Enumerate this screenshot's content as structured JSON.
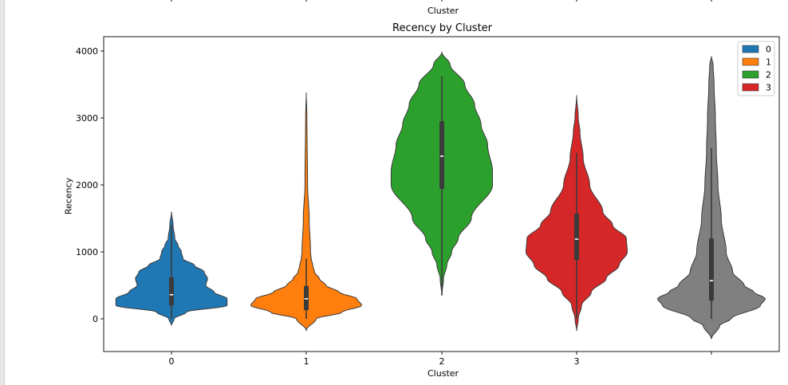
{
  "top_partial": {
    "xlabel": "Cluster",
    "ticks": [
      "0",
      "1",
      "2",
      "3",
      ""
    ]
  },
  "chart_data": {
    "type": "violin",
    "title": "Recency by Cluster",
    "xlabel": "Cluster",
    "ylabel": "Recency",
    "categories": [
      "0",
      "1",
      "2",
      "3",
      ""
    ],
    "ylim": [
      -500,
      4200
    ],
    "yticks": [
      0,
      1000,
      2000,
      3000,
      4000
    ],
    "legend": {
      "placement": "top-right",
      "entries": [
        "0",
        "1",
        "2",
        "3"
      ]
    },
    "colors": [
      "#1f77b4",
      "#ff7f0e",
      "#2ca02c",
      "#d62728",
      "#808080"
    ],
    "series": [
      {
        "name": "0",
        "min": -100,
        "max": 1600,
        "q1": 200,
        "median": 360,
        "q3": 620,
        "whisker_low": 0,
        "whisker_high": 1400,
        "profile": [
          [
            -100,
            0
          ],
          [
            0,
            0.8
          ],
          [
            100,
            4.5
          ],
          [
            200,
            17
          ],
          [
            300,
            17
          ],
          [
            400,
            13
          ],
          [
            500,
            10.5
          ],
          [
            600,
            11
          ],
          [
            700,
            10
          ],
          [
            800,
            7
          ],
          [
            900,
            3.5
          ],
          [
            1000,
            3
          ],
          [
            1100,
            2
          ],
          [
            1200,
            1
          ],
          [
            1400,
            0.5
          ],
          [
            1600,
            0
          ]
        ]
      },
      {
        "name": "1",
        "min": -170,
        "max": 3380,
        "q1": 130,
        "median": 300,
        "q3": 490,
        "whisker_low": 0,
        "whisker_high": 900,
        "profile": [
          [
            -170,
            0
          ],
          [
            0,
            3
          ],
          [
            100,
            11
          ],
          [
            200,
            17
          ],
          [
            300,
            15.5
          ],
          [
            400,
            10
          ],
          [
            500,
            6
          ],
          [
            600,
            4
          ],
          [
            700,
            2.5
          ],
          [
            800,
            2
          ],
          [
            900,
            1.5
          ],
          [
            1000,
            1.3
          ],
          [
            1500,
            0.9
          ],
          [
            2000,
            0.4
          ],
          [
            3000,
            0.2
          ],
          [
            3380,
            0
          ]
        ]
      },
      {
        "name": "2",
        "min": 350,
        "max": 3980,
        "q1": 1940,
        "median": 2430,
        "q3": 2950,
        "whisker_low": 350,
        "whisker_high": 3620,
        "profile": [
          [
            350,
            0
          ],
          [
            600,
            0.5
          ],
          [
            800,
            1.5
          ],
          [
            1000,
            3
          ],
          [
            1200,
            5
          ],
          [
            1500,
            9
          ],
          [
            2000,
            15.5
          ],
          [
            2200,
            15.5
          ],
          [
            2600,
            14
          ],
          [
            2900,
            12
          ],
          [
            3200,
            10
          ],
          [
            3500,
            7
          ],
          [
            3800,
            2.5
          ],
          [
            3980,
            0
          ]
        ]
      },
      {
        "name": "3",
        "min": -180,
        "max": 3340,
        "q1": 880,
        "median": 1190,
        "q3": 1570,
        "whisker_low": 0,
        "whisker_high": 2480,
        "profile": [
          [
            -180,
            0
          ],
          [
            0,
            0.5
          ],
          [
            200,
            1.5
          ],
          [
            400,
            4.5
          ],
          [
            600,
            9
          ],
          [
            800,
            13
          ],
          [
            1000,
            15.5
          ],
          [
            1200,
            15.2
          ],
          [
            1400,
            11
          ],
          [
            1600,
            8
          ],
          [
            2000,
            4
          ],
          [
            2400,
            2
          ],
          [
            2800,
            1
          ],
          [
            3000,
            0.5
          ],
          [
            3340,
            0
          ]
        ]
      },
      {
        "name": "",
        "min": -300,
        "max": 3920,
        "q1": 270,
        "median": 570,
        "q3": 1200,
        "whisker_low": 0,
        "whisker_high": 2550,
        "profile": [
          [
            -300,
            0
          ],
          [
            -100,
            2.5
          ],
          [
            0,
            6
          ],
          [
            200,
            15
          ],
          [
            300,
            16.5
          ],
          [
            400,
            13
          ],
          [
            500,
            10
          ],
          [
            700,
            6.5
          ],
          [
            1000,
            4.5
          ],
          [
            1500,
            3
          ],
          [
            2000,
            2
          ],
          [
            2500,
            1.5
          ],
          [
            3000,
            1.2
          ],
          [
            3500,
            0.8
          ],
          [
            3800,
            0.5
          ],
          [
            3920,
            0
          ]
        ]
      }
    ]
  }
}
